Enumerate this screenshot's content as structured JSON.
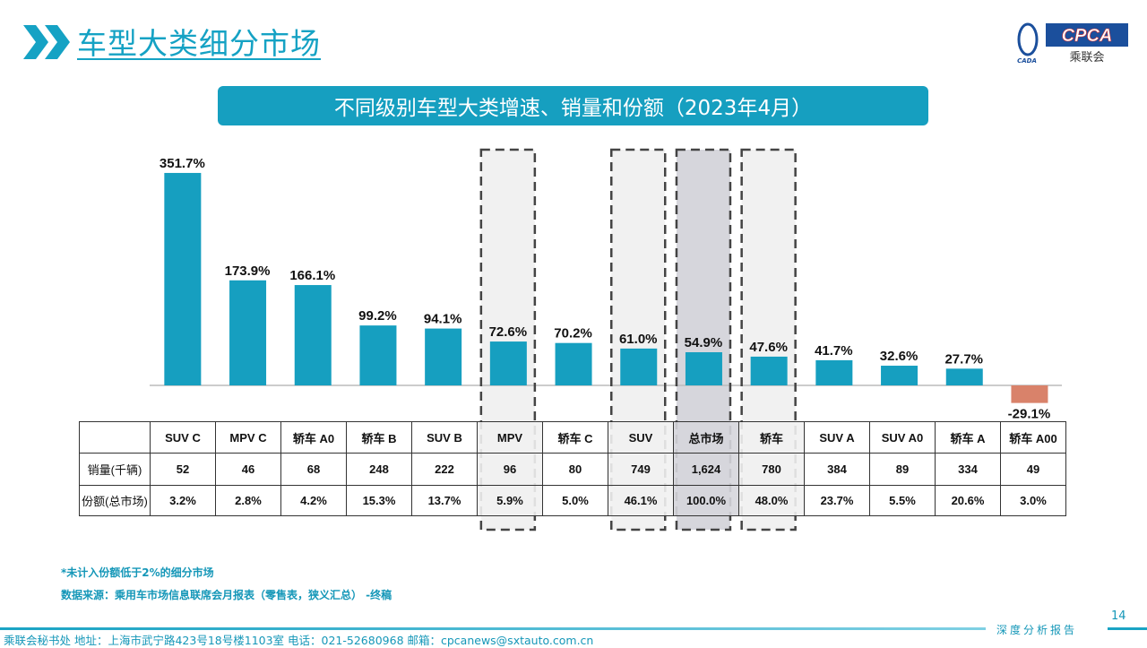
{
  "header": {
    "title": "车型大类细分市场",
    "logo_text": "CPCA",
    "logo_sub": "乘联会",
    "logo_small": "CADA"
  },
  "subtitle": "不同级别车型大类增速、销量和份额（2023年4月）",
  "colors": {
    "accent": "#169fc0",
    "positive_bar": "#169fc0",
    "negative_bar": "#d9826a",
    "highlight_fill": "#f1f1f1",
    "total_fill": "#d6d6dc"
  },
  "chart_data": {
    "type": "bar",
    "title": "不同级别车型大类增速、销量和份额（2023年4月）",
    "categories": [
      "SUV C",
      "MPV C",
      "轿车 A0",
      "轿车 B",
      "SUV B",
      "MPV",
      "轿车 C",
      "SUV",
      "总市场",
      "轿车",
      "SUV A",
      "SUV A0",
      "轿车 A",
      "轿车 A00"
    ],
    "values": [
      351.7,
      173.9,
      166.1,
      99.2,
      94.1,
      72.6,
      70.2,
      61.0,
      54.9,
      47.6,
      41.7,
      32.6,
      27.7,
      -29.1
    ],
    "value_labels": [
      "351.7%",
      "173.9%",
      "166.1%",
      "99.2%",
      "94.1%",
      "72.6%",
      "70.2%",
      "61.0%",
      "54.9%",
      "47.6%",
      "41.7%",
      "32.6%",
      "27.7%",
      "-29.1%"
    ],
    "unit": "%",
    "highlighted_categories": [
      "MPV",
      "SUV",
      "总市场",
      "轿车"
    ],
    "grid": false
  },
  "table": {
    "row_labels": [
      "",
      "销量(千辆)",
      "份额(总市场)"
    ],
    "sales": [
      "52",
      "46",
      "68",
      "248",
      "222",
      "96",
      "80",
      "749",
      "1,624",
      "780",
      "384",
      "89",
      "334",
      "49"
    ],
    "share": [
      "3.2%",
      "2.8%",
      "4.2%",
      "15.3%",
      "13.7%",
      "5.9%",
      "5.0%",
      "46.1%",
      "100.0%",
      "48.0%",
      "23.7%",
      "5.5%",
      "20.6%",
      "3.0%"
    ]
  },
  "notes": {
    "note1": "*未计入份额低于2%的细分市场",
    "source": "数据来源：乘用车市场信息联席会月报表（零售表，狭义汇总） -终稿"
  },
  "footer": {
    "text": "乘联会秘书处   地址：上海市武宁路423号18号楼1103室  电话：021-52680968   邮箱：cpcanews@sxtauto.com.cn",
    "report": "深度分析报告",
    "page": "14"
  }
}
